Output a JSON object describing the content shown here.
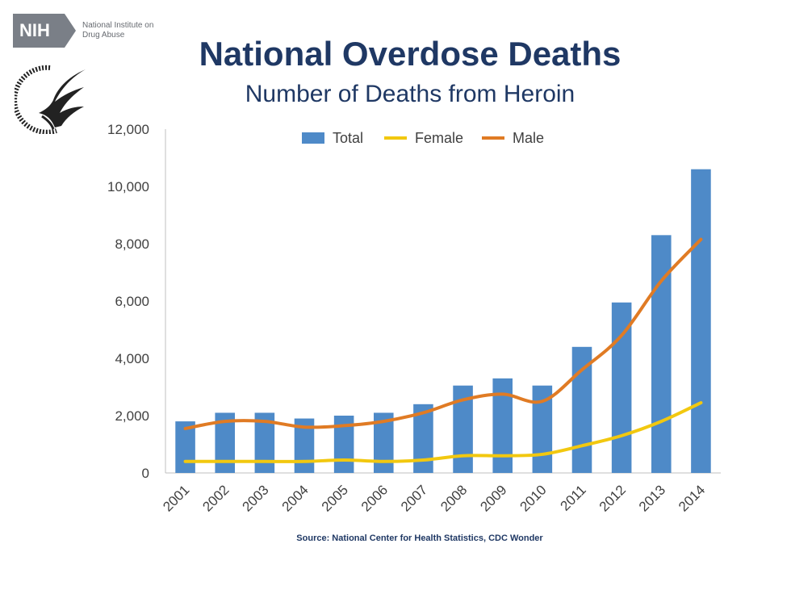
{
  "header": {
    "logo_text": "NIH",
    "institute": "National Institute on Drug Abuse"
  },
  "chart_data": {
    "type": "bar",
    "title": "National Overdose Deaths",
    "subtitle": "Number of Deaths from Heroin",
    "xlabel": "",
    "ylabel": "",
    "ylim": [
      0,
      12000
    ],
    "yticks": [
      0,
      2000,
      4000,
      6000,
      8000,
      10000,
      12000
    ],
    "ytick_labels": [
      "0",
      "2,000",
      "4,000",
      "6,000",
      "8,000",
      "10,000",
      "12,000"
    ],
    "categories": [
      "2001",
      "2002",
      "2003",
      "2004",
      "2005",
      "2006",
      "2007",
      "2008",
      "2009",
      "2010",
      "2011",
      "2012",
      "2013",
      "2014"
    ],
    "series": [
      {
        "name": "Total",
        "kind": "bar",
        "color": "#4e8ac8",
        "values": [
          1800,
          2100,
          2100,
          1900,
          2000,
          2100,
          2400,
          3050,
          3300,
          3050,
          4400,
          5950,
          8300,
          10600
        ]
      },
      {
        "name": "Female",
        "kind": "line",
        "color": "#f2c80f",
        "values": [
          400,
          400,
          400,
          400,
          450,
          400,
          450,
          600,
          600,
          650,
          950,
          1300,
          1800,
          2450
        ]
      },
      {
        "name": "Male",
        "kind": "line",
        "color": "#e07b24",
        "values": [
          1550,
          1800,
          1800,
          1600,
          1650,
          1800,
          2100,
          2550,
          2750,
          2500,
          3600,
          4800,
          6700,
          8150
        ]
      }
    ],
    "legend_position": "top-center",
    "grid": false,
    "source": "Source: National Center for Health Statistics, CDC Wonder"
  }
}
